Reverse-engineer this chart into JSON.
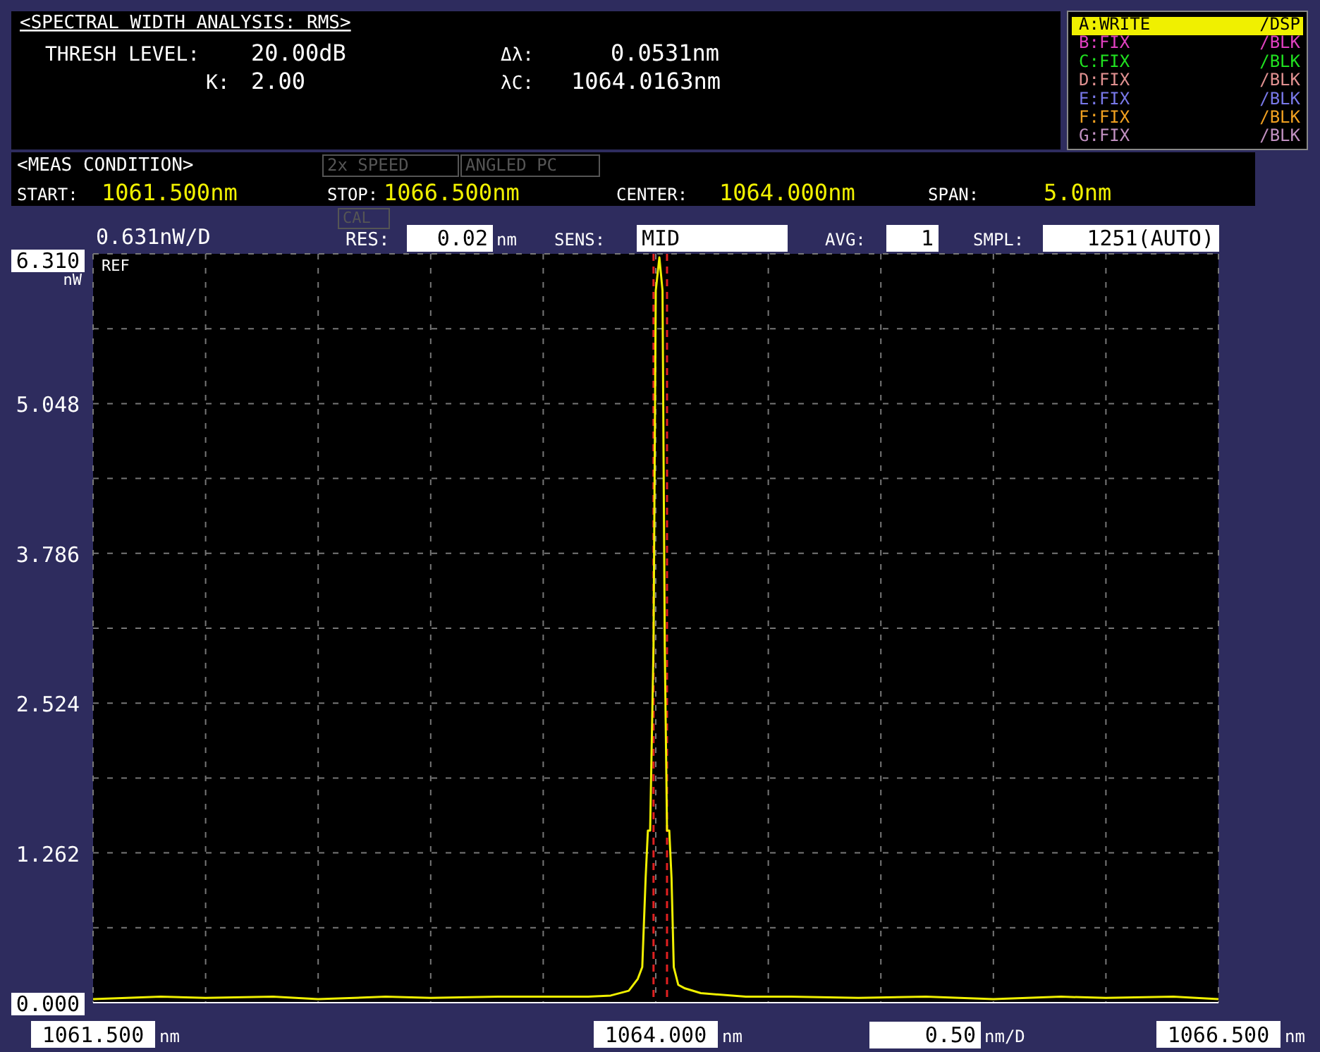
{
  "chart_data": {
    "type": "line",
    "title": "<SPECTRAL WIDTH ANALYSIS: RMS>",
    "xlabel": "nm",
    "ylabel": "nW",
    "x": [
      1061.5,
      1061.8,
      1062.0,
      1062.3,
      1062.5,
      1062.8,
      1063.0,
      1063.3,
      1063.5,
      1063.7,
      1063.8,
      1063.88,
      1063.92,
      1063.94,
      1063.955,
      1063.965,
      1063.975,
      1063.99,
      1064.0,
      1064.016,
      1064.03,
      1064.04,
      1064.05,
      1064.06,
      1064.07,
      1064.08,
      1064.1,
      1064.13,
      1064.2,
      1064.4,
      1064.6,
      1064.9,
      1065.2,
      1065.5,
      1065.8,
      1066.0,
      1066.3,
      1066.5
    ],
    "series": [
      {
        "color": "#f0f000",
        "values": [
          0.03,
          0.05,
          0.04,
          0.05,
          0.03,
          0.05,
          0.04,
          0.05,
          0.05,
          0.05,
          0.06,
          0.1,
          0.2,
          0.3,
          1.05,
          1.45,
          1.45,
          3.0,
          6.0,
          6.28,
          6.0,
          3.0,
          1.45,
          1.45,
          1.05,
          0.3,
          0.15,
          0.12,
          0.08,
          0.05,
          0.05,
          0.04,
          0.05,
          0.03,
          0.05,
          0.04,
          0.05,
          0.03
        ]
      }
    ],
    "xlim": [
      1061.5,
      1066.5
    ],
    "xticks": [
      {
        "value": 1061.5,
        "label": "1061.500"
      },
      {
        "value": 1062,
        "label": null
      },
      {
        "value": 1062.5,
        "label": null
      },
      {
        "value": 1063,
        "label": null
      },
      {
        "value": 1063.5,
        "label": null
      },
      {
        "value": 1064,
        "label": "1064.000"
      },
      {
        "value": 1064.5,
        "label": null
      },
      {
        "value": 1065,
        "label": null
      },
      {
        "value": 1065.5,
        "label": null
      },
      {
        "value": 1066,
        "label": null
      },
      {
        "value": 1066.5,
        "label": "1066.500"
      }
    ],
    "ylim": [
      0,
      6.31
    ],
    "yticks": [
      {
        "value": 0,
        "label": "0.000"
      },
      {
        "value": 0.631,
        "label": null
      },
      {
        "value": 1.262,
        "label": "1.262"
      },
      {
        "value": 1.893,
        "label": null
      },
      {
        "value": 2.524,
        "label": "2.524"
      },
      {
        "value": 3.155,
        "label": null
      },
      {
        "value": 3.786,
        "label": "3.786"
      },
      {
        "value": 4.417,
        "label": null
      },
      {
        "value": 5.048,
        "label": "5.048"
      },
      {
        "value": 5.679,
        "label": null
      },
      {
        "value": 6.31,
        "label": "6.310"
      }
    ],
    "grid": true,
    "line_style": "solid",
    "ref_lines": [
      {
        "axis": "x",
        "value": 1063.99,
        "color": "#e02020",
        "line_style": "dashed"
      },
      {
        "axis": "x",
        "value": 1064.05,
        "color": "#e02020",
        "line_style": "dashed"
      }
    ],
    "annotations": [
      "THRESH LEVEL:",
      "20.00dB",
      "K:",
      "2.00",
      "Δλ:",
      "0.0531nm",
      "λC:",
      "1064.0163nm",
      "A:WRITE",
      "/DSP",
      "B:FIX",
      "/BLK",
      "C:FIX",
      "/BLK",
      "D:FIX",
      "/BLK",
      "E:FIX",
      "/BLK",
      "F:FIX",
      "/BLK",
      "G:FIX",
      "/BLK",
      "<MEAS CONDITION>",
      "2x SPEED",
      "ANGLED PC",
      "START:",
      "1061.500nm",
      "STOP:",
      "1066.500nm",
      "CENTER:",
      "1064.000nm",
      "SPAN:",
      "5.0nm",
      "0.631nW/D",
      "CAL",
      "RES:",
      "0.02",
      "nm",
      "SENS:",
      "MID",
      "AVG:",
      "1",
      "SMPL:",
      "1251(AUTO)",
      "REF",
      "0.50",
      "nm/D"
    ]
  }
}
